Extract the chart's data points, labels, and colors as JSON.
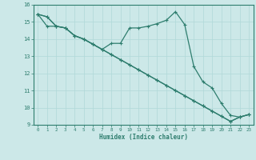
{
  "xlabel": "Humidex (Indice chaleur)",
  "bg_color": "#cce8e8",
  "line_color": "#2e7d6e",
  "grid_color": "#b0d8d8",
  "grid_minor_color": "#d0ecec",
  "xlim": [
    -0.5,
    23.5
  ],
  "ylim": [
    9,
    16
  ],
  "xticks": [
    0,
    1,
    2,
    3,
    4,
    5,
    6,
    7,
    8,
    9,
    10,
    11,
    12,
    13,
    14,
    15,
    16,
    17,
    18,
    19,
    20,
    21,
    22,
    23
  ],
  "yticks": [
    9,
    10,
    11,
    12,
    13,
    14,
    15,
    16
  ],
  "line1_x": [
    0,
    1,
    2,
    3,
    4,
    5,
    6,
    7,
    8,
    9,
    10,
    11,
    12,
    13,
    14,
    15,
    16,
    17,
    18,
    19,
    20,
    21,
    22,
    23
  ],
  "line1_y": [
    15.45,
    15.3,
    14.75,
    14.65,
    14.2,
    14.0,
    13.7,
    13.4,
    13.75,
    13.75,
    14.65,
    14.65,
    14.75,
    14.9,
    15.1,
    15.6,
    14.85,
    12.4,
    11.5,
    11.15,
    10.25,
    9.55,
    9.45,
    9.6
  ],
  "line2_x": [
    0,
    1,
    2,
    3,
    4,
    5,
    6,
    7,
    8,
    9,
    10,
    11,
    12,
    13,
    14,
    15,
    16,
    17,
    18,
    19,
    20,
    21,
    22,
    23
  ],
  "line2_y": [
    15.45,
    15.3,
    14.75,
    14.65,
    14.2,
    14.0,
    13.7,
    13.4,
    13.1,
    12.8,
    12.5,
    12.2,
    11.9,
    11.6,
    11.3,
    11.0,
    10.7,
    10.4,
    10.1,
    9.8,
    9.5,
    9.2,
    9.45,
    9.6
  ],
  "line3_x": [
    0,
    1,
    2,
    3,
    4,
    5,
    6,
    7,
    8,
    9,
    10,
    11,
    12,
    13,
    14,
    15,
    16,
    17,
    18,
    19,
    20,
    21,
    22,
    23
  ],
  "line3_y": [
    15.45,
    14.75,
    14.75,
    14.65,
    14.2,
    14.0,
    13.7,
    13.4,
    13.1,
    12.8,
    12.5,
    12.2,
    11.9,
    11.6,
    11.3,
    11.0,
    10.7,
    10.4,
    10.1,
    9.8,
    9.5,
    9.2,
    9.45,
    9.6
  ]
}
